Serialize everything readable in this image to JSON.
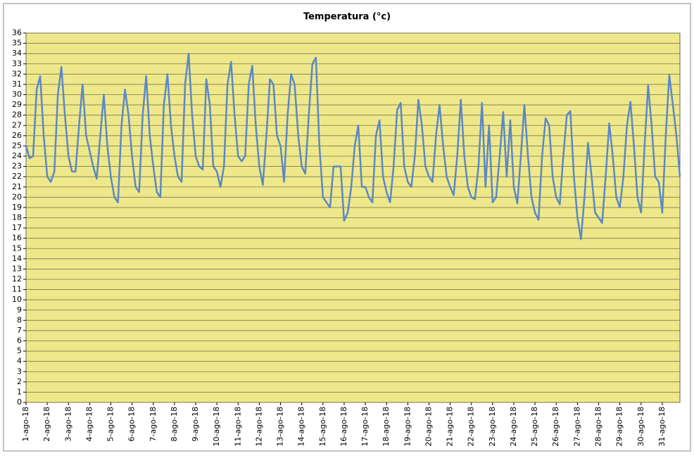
{
  "chart_data": {
    "type": "line",
    "title": "Temperatura (°c)",
    "categories": [
      "1-ago-18",
      null,
      null,
      null,
      null,
      null,
      "2-ago-18",
      null,
      null,
      null,
      null,
      null,
      "3-ago-18",
      null,
      null,
      null,
      null,
      null,
      "4-ago-18",
      null,
      null,
      null,
      null,
      null,
      "5-ago-18",
      null,
      null,
      null,
      null,
      null,
      "6-ago-18",
      null,
      null,
      null,
      null,
      null,
      "7-ago-18",
      null,
      null,
      null,
      null,
      null,
      "8-ago-18",
      null,
      null,
      null,
      null,
      null,
      "9-ago-18",
      null,
      null,
      null,
      null,
      null,
      "10-ago-18",
      null,
      null,
      null,
      null,
      null,
      "11-ago-18",
      null,
      null,
      null,
      null,
      null,
      "12-ago-18",
      null,
      null,
      null,
      null,
      null,
      "13-ago-18",
      null,
      null,
      null,
      null,
      null,
      "14-ago-18",
      null,
      null,
      null,
      null,
      null,
      "15-ago-18",
      null,
      null,
      null,
      null,
      null,
      "16-ago-18",
      null,
      null,
      null,
      null,
      null,
      "17-ago-18",
      null,
      null,
      null,
      null,
      null,
      "18-ago-18",
      null,
      null,
      null,
      null,
      null,
      "19-ago-18",
      null,
      null,
      null,
      null,
      null,
      "20-ago-18",
      null,
      null,
      null,
      null,
      null,
      "21-ago-18",
      null,
      null,
      null,
      null,
      null,
      "22-ago-18",
      null,
      null,
      null,
      null,
      null,
      "23-ago-18",
      null,
      null,
      null,
      null,
      null,
      "24-ago-18",
      null,
      null,
      null,
      null,
      null,
      "25-ago-18",
      null,
      null,
      null,
      null,
      null,
      "26-ago-18",
      null,
      null,
      null,
      null,
      null,
      "27-ago-18",
      null,
      null,
      null,
      null,
      null,
      "28-ago-18",
      null,
      null,
      null,
      null,
      null,
      "29-ago-18",
      null,
      null,
      null,
      null,
      null,
      "30-ago-18",
      null,
      null,
      null,
      null,
      null,
      "31-ago-18",
      null,
      null,
      null,
      null,
      null
    ],
    "series": [
      {
        "name": "Temperatura",
        "color": "#5b88c7",
        "values": [
          25,
          23.8,
          24,
          30.5,
          31.8,
          26,
          22,
          21.5,
          22.5,
          30,
          32.7,
          28,
          24,
          22.5,
          22.5,
          27,
          31,
          26,
          24.5,
          23,
          21.8,
          26,
          30,
          25,
          22,
          20,
          19.5,
          27,
          30.5,
          28,
          24,
          21,
          20.5,
          28,
          31.8,
          26,
          23,
          20.5,
          20,
          29,
          32,
          27,
          24,
          22,
          21.5,
          31,
          34,
          28,
          24,
          23,
          22.7,
          31.5,
          29,
          23,
          22.5,
          21,
          23,
          31,
          33.2,
          28,
          24,
          23.5,
          24,
          31,
          32.8,
          27,
          23,
          21.2,
          26,
          31.5,
          31,
          26,
          25,
          21.5,
          28,
          32,
          31,
          26,
          23,
          22.3,
          28,
          33,
          33.6,
          25,
          20,
          19.5,
          19,
          23,
          23,
          23,
          17.7,
          18.5,
          21,
          25,
          27,
          21,
          21,
          20,
          19.5,
          26,
          27.5,
          22,
          20.5,
          19.5,
          23,
          28.5,
          29.2,
          23,
          21.5,
          21,
          24,
          29.5,
          27,
          23,
          22,
          21.5,
          26,
          29,
          25,
          22,
          21,
          20.2,
          24,
          29.5,
          24,
          21,
          20,
          19.8,
          23,
          29.2,
          21,
          27,
          19.5,
          20,
          24,
          28.3,
          22,
          27.5,
          21,
          19.4,
          24,
          29,
          24,
          20,
          18.5,
          17.8,
          24,
          27.7,
          27,
          22,
          20,
          19.3,
          24,
          28,
          28.4,
          22,
          18,
          15.9,
          20,
          25.3,
          22,
          18.5,
          18,
          17.5,
          22,
          27.2,
          24,
          20,
          19,
          22,
          27,
          29.3,
          25,
          20,
          18.5,
          25,
          30.9,
          27,
          22,
          21.5,
          18.5,
          26,
          31.9,
          29,
          26,
          22
        ]
      }
    ],
    "ylim": [
      0,
      36
    ],
    "yticks": [
      0,
      1,
      2,
      3,
      4,
      5,
      6,
      7,
      8,
      9,
      10,
      11,
      12,
      13,
      14,
      15,
      16,
      17,
      18,
      19,
      20,
      21,
      22,
      23,
      24,
      25,
      26,
      27,
      28,
      29,
      30,
      31,
      32,
      33,
      34,
      35,
      36
    ],
    "grid": true,
    "plot_background": "#eee88a"
  }
}
